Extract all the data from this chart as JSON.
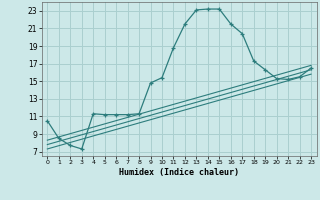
{
  "xlabel": "Humidex (Indice chaleur)",
  "bg_color": "#cce8e8",
  "grid_color": "#aacfcf",
  "line_color": "#2d7d7d",
  "xlim": [
    -0.5,
    23.5
  ],
  "ylim": [
    6.5,
    24.0
  ],
  "yticks": [
    7,
    9,
    11,
    13,
    15,
    17,
    19,
    21,
    23
  ],
  "xticks": [
    0,
    1,
    2,
    3,
    4,
    5,
    6,
    7,
    8,
    9,
    10,
    11,
    12,
    13,
    14,
    15,
    16,
    17,
    18,
    19,
    20,
    21,
    22,
    23
  ],
  "main_line_x": [
    0,
    1,
    2,
    3,
    4,
    5,
    6,
    7,
    8,
    9,
    10,
    11,
    12,
    13,
    14,
    15,
    16,
    17,
    18,
    19,
    20,
    21,
    22,
    23
  ],
  "main_line_y": [
    10.5,
    8.5,
    7.7,
    7.3,
    11.3,
    11.2,
    11.2,
    11.2,
    11.3,
    14.8,
    15.4,
    18.8,
    21.5,
    23.1,
    23.2,
    23.2,
    21.5,
    20.4,
    17.3,
    16.3,
    15.3,
    15.2,
    15.5,
    16.5
  ],
  "line2_x": [
    0,
    23
  ],
  "line2_y": [
    7.3,
    15.8
  ],
  "line3_x": [
    0,
    23
  ],
  "line3_y": [
    7.8,
    16.3
  ],
  "line4_x": [
    0,
    23
  ],
  "line4_y": [
    8.3,
    16.8
  ]
}
